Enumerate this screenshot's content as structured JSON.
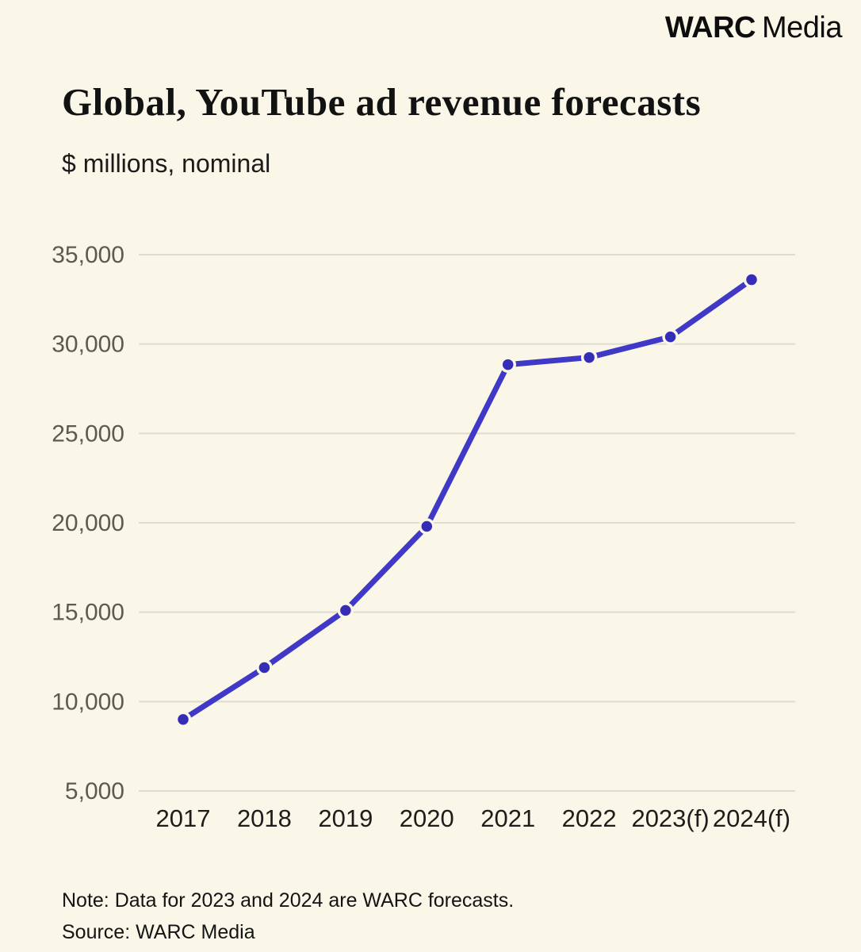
{
  "brand": {
    "bold": "WARC",
    "regular": "Media"
  },
  "header": {
    "title": "Global, YouTube ad revenue forecasts",
    "subtitle": "$ millions, nominal"
  },
  "chart_data": {
    "type": "line",
    "title": "Global, YouTube ad revenue forecasts",
    "subtitle_units": "$ millions, nominal",
    "categories": [
      "2017",
      "2018",
      "2019",
      "2020",
      "2021",
      "2022",
      "2023(f)",
      "2024(f)"
    ],
    "values": [
      9000,
      11900,
      15100,
      19800,
      28850,
      29250,
      30400,
      33600
    ],
    "series_name": "YouTube ad revenue ($m, nominal)",
    "ylim": [
      5000,
      35000
    ],
    "yticks": [
      5000,
      10000,
      15000,
      20000,
      25000,
      30000,
      35000
    ],
    "ytick_labels": [
      "5,000",
      "10,000",
      "15,000",
      "20,000",
      "25,000",
      "30,000",
      "35,000"
    ],
    "grid": true,
    "legend": "none",
    "colors": {
      "line": "#4038c6",
      "point": "#342db8",
      "grid": "#dedbd0",
      "ytick_text": "#5d5a52",
      "xtick_text": "#1d1d1b",
      "background": "#faf6e8"
    }
  },
  "footer": {
    "note": "Note: Data for 2023 and 2024 are WARC forecasts.",
    "source": "Source: WARC Media"
  }
}
